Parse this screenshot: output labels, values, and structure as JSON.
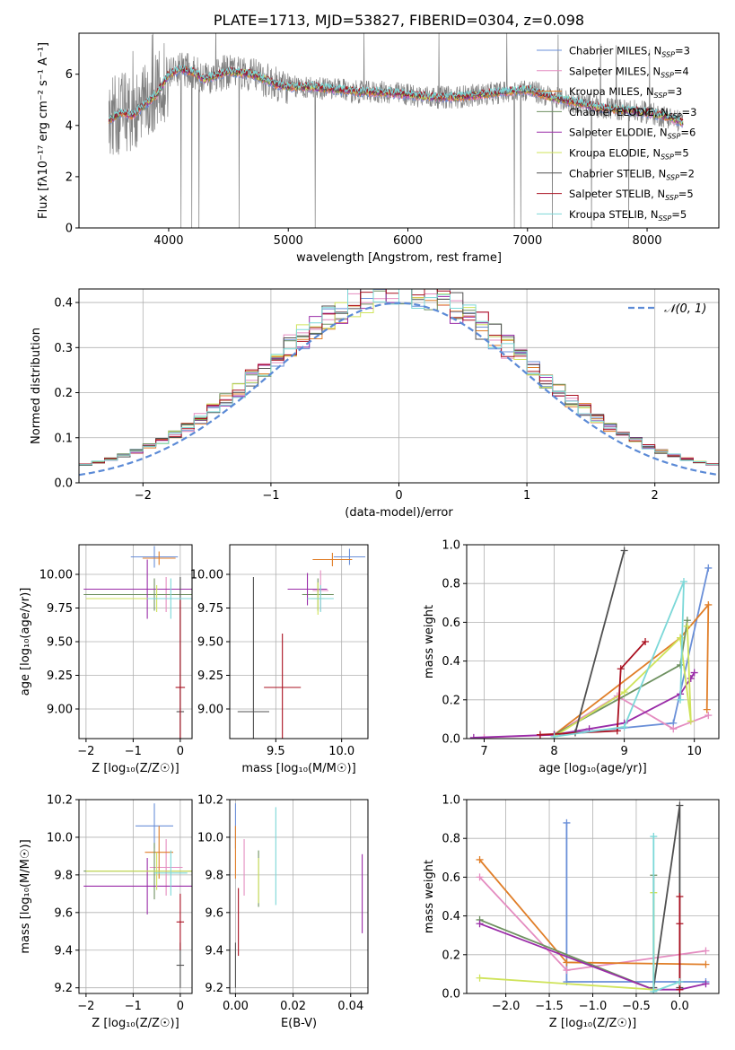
{
  "palette": {
    "Chabrier MILES": "#6a8fd8",
    "Salpeter MILES": "#e48cc0",
    "Kroupa MILES": "#e07e28",
    "Chabrier ELODIE": "#6e9160",
    "Salpeter ELODIE": "#9a2ca8",
    "Kroupa ELODIE": "#cfe35a",
    "Chabrier STELIB": "#505050",
    "Salpeter STELIB": "#aa1020",
    "Kroupa STELIB": "#7cd8d8"
  },
  "chart_data": [
    {
      "id": "spectrum",
      "type": "line",
      "title": "PLATE=1713, MJD=53827, FIBERID=0304, z=0.098",
      "xlabel": "wavelength [Angstrom, rest frame]",
      "ylabel": "Flux [fλ10⁻¹⁷ erg cm⁻² s⁻¹ A⁻¹]",
      "xlim": [
        3250,
        8600
      ],
      "ylim": [
        0,
        7.6
      ],
      "xticks": [
        4000,
        5000,
        6000,
        7000,
        8000
      ],
      "yticks": [
        0,
        2,
        4,
        6
      ],
      "grid": false,
      "legend": "upper right",
      "data_color": "#808080",
      "continuum": [
        [
          3500,
          4.2
        ],
        [
          3600,
          4.5
        ],
        [
          3700,
          4.4
        ],
        [
          3800,
          4.8
        ],
        [
          3900,
          5.2
        ],
        [
          4000,
          6.0
        ],
        [
          4100,
          6.2
        ],
        [
          4200,
          6.1
        ],
        [
          4300,
          5.8
        ],
        [
          4500,
          6.1
        ],
        [
          4700,
          6.0
        ],
        [
          4800,
          5.8
        ],
        [
          4900,
          5.6
        ],
        [
          5000,
          5.5
        ],
        [
          5200,
          5.5
        ],
        [
          5400,
          5.4
        ],
        [
          5600,
          5.3
        ],
        [
          5800,
          5.3
        ],
        [
          6000,
          5.2
        ],
        [
          6200,
          5.1
        ],
        [
          6400,
          5.1
        ],
        [
          6600,
          5.2
        ],
        [
          6800,
          5.3
        ],
        [
          7000,
          5.4
        ],
        [
          7200,
          5.1
        ],
        [
          7400,
          4.9
        ],
        [
          7600,
          4.7
        ],
        [
          7800,
          4.6
        ],
        [
          8000,
          4.5
        ],
        [
          8200,
          4.3
        ],
        [
          8300,
          4.1
        ]
      ],
      "legend_entries": [
        {
          "model": "Chabrier MILES",
          "prefix": "Chabrier MILES, N",
          "sub": "SSP",
          "suffix": "=3"
        },
        {
          "model": "Salpeter MILES",
          "prefix": "Salpeter MILES, N",
          "sub": "SSP",
          "suffix": "=4"
        },
        {
          "model": "Kroupa MILES",
          "prefix": "Kroupa MILES, N",
          "sub": "SSP",
          "suffix": "=3"
        },
        {
          "model": "Chabrier ELODIE",
          "prefix": "Chabrier ELODIE, N",
          "sub": "SSP",
          "suffix": "=3"
        },
        {
          "model": "Salpeter ELODIE",
          "prefix": "Salpeter ELODIE, N",
          "sub": "SSP",
          "suffix": "=6"
        },
        {
          "model": "Kroupa ELODIE",
          "prefix": "Kroupa ELODIE, N",
          "sub": "SSP",
          "suffix": "=5"
        },
        {
          "model": "Chabrier STELIB",
          "prefix": "Chabrier STELIB, N",
          "sub": "SSP",
          "suffix": "=2"
        },
        {
          "model": "Salpeter STELIB",
          "prefix": "Salpeter STELIB, N",
          "sub": "SSP",
          "suffix": "=5"
        },
        {
          "model": "Kroupa STELIB",
          "prefix": "Kroupa STELIB, N",
          "sub": "SSP",
          "suffix": "=5"
        }
      ]
    },
    {
      "id": "residuals",
      "type": "histogram",
      "xlabel": "(data-model)/error",
      "ylabel": "Normed distribution",
      "xlim": [
        -2.5,
        2.5
      ],
      "ylim": [
        0,
        0.43
      ],
      "xticks": [
        -2,
        -1,
        0,
        1,
        2
      ],
      "yticks": [
        0.0,
        0.1,
        0.2,
        0.3,
        0.4
      ],
      "grid": true,
      "legend": "upper right",
      "reference_label": "𝒩(0, 1)",
      "reference_color": "#5b8ad6",
      "bin_width": 0.1
    },
    {
      "id": "age_vs_Z",
      "type": "errorbar",
      "xlabel": "Z [log₁₀(Z/Z☉)]",
      "ylabel": "age  [log₁₀(age/yr)]",
      "xlim": [
        -2.15,
        0.25
      ],
      "ylim": [
        8.78,
        10.22
      ],
      "xticks": [
        -2,
        -1,
        0
      ],
      "yticks": [
        9.0,
        9.25,
        9.5,
        9.75,
        10.0
      ],
      "grid": true,
      "points": [
        {
          "model": "Chabrier MILES",
          "x": -0.55,
          "xerr": 0.5,
          "y": 10.13,
          "yerr": 0.08
        },
        {
          "model": "Salpeter MILES",
          "x": -0.3,
          "xerr": 0.35,
          "y": 9.85,
          "yerr": 0.13
        },
        {
          "model": "Kroupa MILES",
          "x": -0.45,
          "xerr": 0.35,
          "y": 10.12,
          "yerr": 0.05
        },
        {
          "model": "Chabrier ELODIE",
          "x": -0.55,
          "xerr": 1.5,
          "y": 9.85,
          "yerr": 0.12
        },
        {
          "model": "Salpeter ELODIE",
          "x": -0.7,
          "xerr": 1.35,
          "y": 9.89,
          "yerr": 0.22
        },
        {
          "model": "Kroupa ELODIE",
          "x": -0.5,
          "xerr": 1.5,
          "y": 9.82,
          "yerr": 0.1
        },
        {
          "model": "Chabrier STELIB",
          "x": 0.0,
          "xerr": 0.08,
          "y": 8.98,
          "yerr": 1.0
        },
        {
          "model": "Salpeter STELIB",
          "x": 0.0,
          "xerr": 0.1,
          "y": 9.16,
          "yerr": 0.65
        },
        {
          "model": "Kroupa STELIB",
          "x": -0.2,
          "xerr": 0.5,
          "y": 9.82,
          "yerr": 0.15
        }
      ]
    },
    {
      "id": "age_vs_mass",
      "type": "errorbar",
      "xlabel": "mass [log₁₀(M/M☉)]",
      "ylabel": "",
      "xlim": [
        9.15,
        10.2
      ],
      "ylim": [
        8.78,
        10.22
      ],
      "xticks": [
        9.5,
        10.0
      ],
      "yticks": [
        9.0,
        9.25,
        9.5,
        9.75,
        10.0
      ],
      "grid": true,
      "points": [
        {
          "model": "Chabrier MILES",
          "x": 10.06,
          "xerr": 0.12,
          "y": 10.13,
          "yerr": 0.06
        },
        {
          "model": "Salpeter MILES",
          "x": 9.84,
          "xerr": 0.06,
          "y": 9.88,
          "yerr": 0.15
        },
        {
          "model": "Kroupa MILES",
          "x": 9.93,
          "xerr": 0.15,
          "y": 10.11,
          "yerr": 0.05
        },
        {
          "model": "Chabrier ELODIE",
          "x": 9.82,
          "xerr": 0.12,
          "y": 9.85,
          "yerr": 0.12
        },
        {
          "model": "Salpeter ELODIE",
          "x": 9.74,
          "xerr": 0.15,
          "y": 9.89,
          "yerr": 0.12
        },
        {
          "model": "Kroupa ELODIE",
          "x": 9.82,
          "xerr": 0.05,
          "y": 9.82,
          "yerr": 0.12
        },
        {
          "model": "Chabrier STELIB",
          "x": 9.33,
          "xerr": 0.12,
          "y": 8.98,
          "yerr": 1.0
        },
        {
          "model": "Salpeter STELIB",
          "x": 9.55,
          "xerr": 0.14,
          "y": 9.16,
          "yerr": 0.4
        },
        {
          "model": "Kroupa STELIB",
          "x": 9.84,
          "xerr": 0.1,
          "y": 9.82,
          "yerr": 0.1
        }
      ]
    },
    {
      "id": "mass_weight_vs_age",
      "type": "line",
      "xlabel": "age  [log₁₀(age/yr)]",
      "ylabel": "mass weight",
      "xlim": [
        6.75,
        10.35
      ],
      "ylim": [
        0,
        1.0
      ],
      "xticks": [
        7,
        8,
        9,
        10
      ],
      "yticks": [
        0.0,
        0.2,
        0.4,
        0.6,
        0.8,
        1.0
      ],
      "grid": true,
      "series": [
        {
          "model": "Chabrier MILES",
          "x": [
            8.0,
            9.7,
            10.2
          ],
          "y": [
            0.02,
            0.08,
            0.88
          ]
        },
        {
          "model": "Salpeter MILES",
          "x": [
            7.0,
            8.0,
            8.9,
            9.7,
            10.2
          ],
          "y": [
            0.005,
            0.02,
            0.22,
            0.05,
            0.12
          ]
        },
        {
          "model": "Kroupa MILES",
          "x": [
            8.0,
            9.8,
            10.2,
            10.18
          ],
          "y": [
            0.02,
            0.52,
            0.69,
            0.15
          ]
        },
        {
          "model": "Chabrier ELODIE",
          "x": [
            8.0,
            9.8,
            9.9
          ],
          "y": [
            0.02,
            0.38,
            0.61
          ]
        },
        {
          "model": "Salpeter ELODIE",
          "x": [
            6.85,
            8.0,
            8.5,
            9.0,
            9.8,
            10.0,
            9.95
          ],
          "y": [
            0.005,
            0.02,
            0.05,
            0.08,
            0.23,
            0.34,
            0.31
          ]
        },
        {
          "model": "Kroupa ELODIE",
          "x": [
            8.0,
            9.0,
            9.8,
            9.95,
            9.9
          ],
          "y": [
            0.01,
            0.24,
            0.52,
            0.09,
            0.58
          ]
        },
        {
          "model": "Chabrier STELIB",
          "x": [
            8.3,
            9.0
          ],
          "y": [
            0.03,
            0.97
          ]
        },
        {
          "model": "Salpeter STELIB",
          "x": [
            7.8,
            8.9,
            8.95,
            9.3
          ],
          "y": [
            0.02,
            0.04,
            0.36,
            0.5
          ]
        },
        {
          "model": "Kroupa STELIB",
          "x": [
            8.0,
            9.0,
            9.85,
            9.8
          ],
          "y": [
            0.01,
            0.06,
            0.81,
            0.2
          ]
        }
      ]
    },
    {
      "id": "mass_vs_Z",
      "type": "errorbar",
      "xlabel": "Z [log₁₀(Z/Z☉)]",
      "ylabel": "mass [log₁₀(M/M☉)]",
      "xlim": [
        -2.15,
        0.25
      ],
      "ylim": [
        9.17,
        10.2
      ],
      "xticks": [
        -2,
        -1,
        0
      ],
      "yticks": [
        9.2,
        9.4,
        9.6,
        9.8,
        10.0,
        10.2
      ],
      "grid": true,
      "points": [
        {
          "model": "Chabrier MILES",
          "x": -0.55,
          "xerr": 0.4,
          "y": 10.06,
          "yerr": 0.12
        },
        {
          "model": "Salpeter MILES",
          "x": -0.3,
          "xerr": 0.35,
          "y": 9.84,
          "yerr": 0.15
        },
        {
          "model": "Kroupa MILES",
          "x": -0.45,
          "xerr": 0.3,
          "y": 9.92,
          "yerr": 0.14
        },
        {
          "model": "Chabrier ELODIE",
          "x": -0.55,
          "xerr": 1.5,
          "y": 9.82,
          "yerr": 0.15
        },
        {
          "model": "Salpeter ELODIE",
          "x": -0.7,
          "xerr": 1.35,
          "y": 9.74,
          "yerr": 0.15
        },
        {
          "model": "Kroupa ELODIE",
          "x": -0.5,
          "xerr": 1.5,
          "y": 9.82,
          "yerr": 0.1
        },
        {
          "model": "Chabrier STELIB",
          "x": 0.0,
          "xerr": 0.08,
          "y": 9.32,
          "yerr": 0.12
        },
        {
          "model": "Salpeter STELIB",
          "x": 0.0,
          "xerr": 0.08,
          "y": 9.55,
          "yerr": 0.15
        },
        {
          "model": "Kroupa STELIB",
          "x": -0.2,
          "xerr": 0.35,
          "y": 9.81,
          "yerr": 0.12
        }
      ]
    },
    {
      "id": "mass_vs_EBV",
      "type": "errorbar",
      "xlabel": "E(B-V)",
      "ylabel": "",
      "xlim": [
        -0.002,
        0.046
      ],
      "ylim": [
        9.17,
        10.2
      ],
      "xticks": [
        0.0,
        0.02,
        0.04
      ],
      "yticks": [
        9.2,
        9.4,
        9.6,
        9.8,
        10.0,
        10.2
      ],
      "grid": true,
      "points": [
        {
          "model": "Chabrier MILES",
          "x": 0.0,
          "xerr": 0,
          "y": 10.06,
          "yerr": 0.12
        },
        {
          "model": "Salpeter MILES",
          "x": 0.003,
          "xerr": 0,
          "y": 9.84,
          "yerr": 0.15
        },
        {
          "model": "Kroupa MILES",
          "x": 0.0,
          "xerr": 0,
          "y": 9.92,
          "yerr": 0.14
        },
        {
          "model": "Chabrier ELODIE",
          "x": 0.008,
          "xerr": 0,
          "y": 9.78,
          "yerr": 0.15
        },
        {
          "model": "Salpeter ELODIE",
          "x": 0.044,
          "xerr": 0,
          "y": 9.7,
          "yerr": 0.21
        },
        {
          "model": "Kroupa ELODIE",
          "x": 0.008,
          "xerr": 0,
          "y": 9.77,
          "yerr": 0.12
        },
        {
          "model": "Chabrier STELIB",
          "x": 0.0,
          "xerr": 0,
          "y": 9.32,
          "yerr": 0.12
        },
        {
          "model": "Salpeter STELIB",
          "x": 0.001,
          "xerr": 0,
          "y": 9.55,
          "yerr": 0.18
        },
        {
          "model": "Kroupa STELIB",
          "x": 0.014,
          "xerr": 0,
          "y": 9.9,
          "yerr": 0.26
        }
      ]
    },
    {
      "id": "mass_weight_vs_Z",
      "type": "line",
      "xlabel": "Z [log₁₀(Z/Z☉)]",
      "ylabel": "mass weight",
      "xlim": [
        -2.45,
        0.45
      ],
      "ylim": [
        0,
        1.0
      ],
      "xticks": [
        -2.0,
        -1.5,
        -1.0,
        -0.5,
        0.0
      ],
      "yticks": [
        0.0,
        0.2,
        0.4,
        0.6,
        0.8,
        1.0
      ],
      "grid": true,
      "series": [
        {
          "model": "Chabrier MILES",
          "x": [
            -1.3,
            -1.3,
            0.0,
            0.3
          ],
          "y": [
            0.88,
            0.06,
            0.06,
            0.06
          ]
        },
        {
          "model": "Salpeter MILES",
          "x": [
            -2.3,
            -1.3,
            0.3
          ],
          "y": [
            0.6,
            0.12,
            0.22
          ]
        },
        {
          "model": "Kroupa MILES",
          "x": [
            -2.3,
            -1.3,
            0.3
          ],
          "y": [
            0.69,
            0.16,
            0.15
          ]
        },
        {
          "model": "Chabrier ELODIE",
          "x": [
            -2.3,
            -0.3,
            -0.3
          ],
          "y": [
            0.38,
            0.02,
            0.61
          ]
        },
        {
          "model": "Salpeter ELODIE",
          "x": [
            -2.3,
            -0.3,
            0.0,
            0.3
          ],
          "y": [
            0.36,
            0.02,
            0.02,
            0.05
          ]
        },
        {
          "model": "Kroupa ELODIE",
          "x": [
            -2.3,
            -0.3,
            -0.3
          ],
          "y": [
            0.08,
            0.02,
            0.52
          ]
        },
        {
          "model": "Chabrier STELIB",
          "x": [
            -0.3,
            0.0,
            0.0
          ],
          "y": [
            0.03,
            0.97,
            0.03
          ]
        },
        {
          "model": "Salpeter STELIB",
          "x": [
            0.0,
            0.0,
            0.0
          ],
          "y": [
            0.02,
            0.36,
            0.5
          ]
        },
        {
          "model": "Kroupa STELIB",
          "x": [
            -0.3,
            -0.3,
            0.0
          ],
          "y": [
            0.81,
            0.01,
            0.06
          ]
        }
      ]
    }
  ]
}
